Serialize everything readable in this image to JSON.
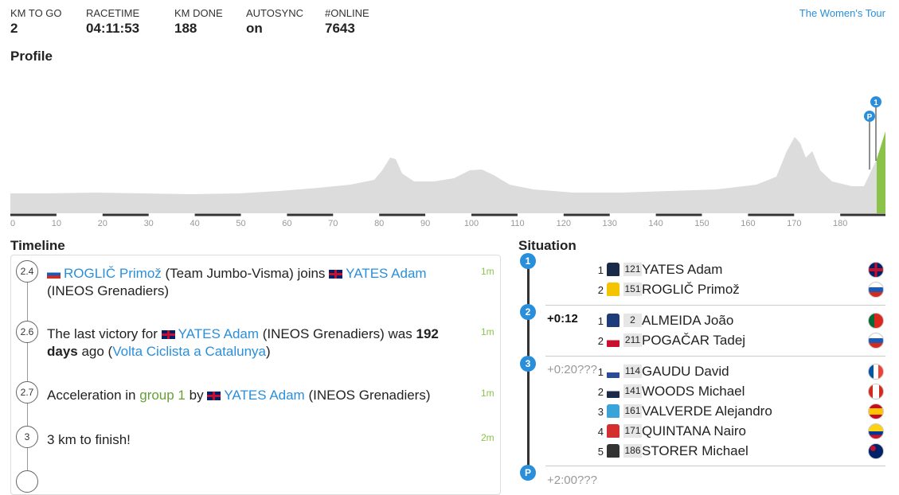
{
  "header": {
    "stats": [
      {
        "label": "KM TO GO",
        "value": "2"
      },
      {
        "label": "RACETIME",
        "value": "04:11:53"
      },
      {
        "label": "KM DONE",
        "value": "188"
      },
      {
        "label": "AUTOSYNC",
        "value": "on"
      },
      {
        "label": "#ONLINE",
        "value": "7643"
      }
    ],
    "link": "The Women's Tour"
  },
  "profile": {
    "title": "Profile",
    "km_ticks": [
      0,
      10,
      20,
      30,
      40,
      50,
      60,
      70,
      80,
      90,
      100,
      110,
      120,
      130,
      140,
      150,
      160,
      170,
      180
    ],
    "markers": [
      "P",
      "1"
    ]
  },
  "timeline": {
    "title": "Timeline",
    "items": [
      {
        "km": "2.4",
        "parts": [
          "ROGLIČ Primož",
          " (Team Jumbo-Visma) joins ",
          "YATES Adam",
          " (INEOS Grenadiers)"
        ],
        "time": "1m"
      },
      {
        "km": "2.6",
        "parts": [
          "The last victory for ",
          "YATES Adam",
          " (INEOS Grenadiers) was ",
          "192 days",
          " ago (",
          "Volta Ciclista a Catalunya",
          ")"
        ],
        "time": "1m"
      },
      {
        "km": "2.7",
        "parts": [
          "Acceleration in ",
          "group 1",
          " by ",
          "YATES Adam",
          " (INEOS Grenadiers)"
        ],
        "time": "1m"
      },
      {
        "km": "3",
        "parts": [
          "3 km to finish!"
        ],
        "time": "2m"
      }
    ]
  },
  "situation": {
    "title": "Situation",
    "groups": [
      {
        "badge": "1",
        "riders": [
          {
            "pos": "1",
            "bib": "121",
            "name": "YATES Adam"
          },
          {
            "pos": "2",
            "bib": "151",
            "name": "ROGLIČ Primož"
          }
        ]
      },
      {
        "badge": "2",
        "gap": "+0:12",
        "riders": [
          {
            "pos": "1",
            "bib": "2",
            "name": "ALMEIDA João"
          },
          {
            "pos": "2",
            "bib": "211",
            "name": "POGAČAR Tadej"
          }
        ]
      },
      {
        "badge": "3",
        "gap": "+0:20???",
        "riders": [
          {
            "pos": "1",
            "bib": "114",
            "name": "GAUDU David"
          },
          {
            "pos": "2",
            "bib": "141",
            "name": "WOODS Michael"
          },
          {
            "pos": "3",
            "bib": "161",
            "name": "VALVERDE Alejandro"
          },
          {
            "pos": "4",
            "bib": "171",
            "name": "QUINTANA Nairo"
          },
          {
            "pos": "5",
            "bib": "186",
            "name": "STORER Michael"
          }
        ]
      },
      {
        "badge": "P",
        "gap": "+2:00???",
        "riders": []
      }
    ]
  }
}
